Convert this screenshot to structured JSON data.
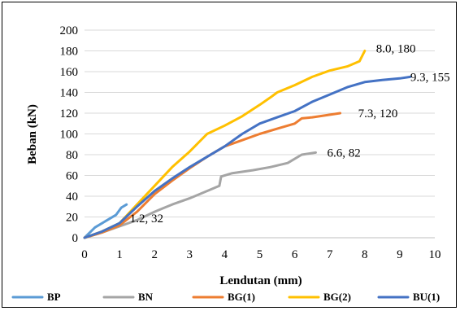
{
  "chart_data": {
    "type": "line",
    "title": "",
    "xlabel": "Lendutan (mm)",
    "ylabel": "Beban (kN)",
    "xlim": [
      0,
      10
    ],
    "ylim": [
      0,
      200
    ],
    "xticks": [
      0,
      1,
      2,
      3,
      4,
      5,
      6,
      7,
      8,
      9,
      10
    ],
    "yticks": [
      0,
      20,
      40,
      60,
      80,
      100,
      120,
      140,
      160,
      180,
      200
    ],
    "grid": true,
    "legend_position": "bottom",
    "series": [
      {
        "name": "BP",
        "color": "#5B9BD5",
        "x": [
          0,
          0.3,
          0.6,
          0.9,
          1.05,
          1.2
        ],
        "y": [
          0,
          10,
          16,
          22,
          29,
          32
        ]
      },
      {
        "name": "BN",
        "color": "#A5A5A5",
        "x": [
          0,
          0.5,
          1.0,
          1.5,
          2.0,
          2.5,
          3.0,
          3.5,
          3.85,
          3.9,
          4.2,
          4.8,
          5.3,
          5.8,
          6.2,
          6.6
        ],
        "y": [
          0,
          5,
          11,
          17,
          25,
          32,
          38,
          45,
          50,
          59,
          62,
          65,
          68,
          72,
          80,
          82
        ]
      },
      {
        "name": "BG(1)",
        "color": "#ED7D31",
        "x": [
          0,
          0.5,
          1.0,
          1.5,
          2.0,
          2.5,
          3.0,
          3.5,
          4.0,
          4.5,
          5.0,
          5.5,
          6.0,
          6.2,
          6.5,
          7.3
        ],
        "y": [
          0,
          5,
          12,
          25,
          42,
          55,
          67,
          78,
          88,
          94,
          100,
          105,
          110,
          115,
          116,
          120
        ]
      },
      {
        "name": "BG(2)",
        "color": "#FFC000",
        "x": [
          0,
          0.5,
          1.0,
          1.5,
          2.0,
          2.5,
          3.0,
          3.5,
          4.0,
          4.5,
          5.0,
          5.3,
          5.5,
          6.0,
          6.5,
          7.0,
          7.5,
          7.85,
          8.0
        ],
        "y": [
          0,
          6,
          14,
          32,
          50,
          68,
          83,
          100,
          108,
          117,
          128,
          135,
          140,
          147,
          155,
          161,
          165,
          170,
          180
        ]
      },
      {
        "name": "BU(1)",
        "color": "#4472C4",
        "x": [
          0,
          0.5,
          1.0,
          1.5,
          2.0,
          2.5,
          3.0,
          3.5,
          4.0,
          4.5,
          5.0,
          5.5,
          6.0,
          6.5,
          7.0,
          7.5,
          8.0,
          8.5,
          9.0,
          9.3
        ],
        "y": [
          0,
          6,
          14,
          30,
          45,
          57,
          68,
          78,
          88,
          100,
          110,
          116,
          122,
          131,
          138,
          145,
          150,
          152,
          153.5,
          155
        ]
      }
    ],
    "annotations": [
      {
        "text": "1.2, 32",
        "x": 1.2,
        "y": 32
      },
      {
        "text": "6.6, 82",
        "x": 6.6,
        "y": 82
      },
      {
        "text": "7.3, 120",
        "x": 7.3,
        "y": 120
      },
      {
        "text": "8.0, 180",
        "x": 8.0,
        "y": 180
      },
      {
        "text": "9.3, 155",
        "x": 9.3,
        "y": 155
      }
    ]
  }
}
